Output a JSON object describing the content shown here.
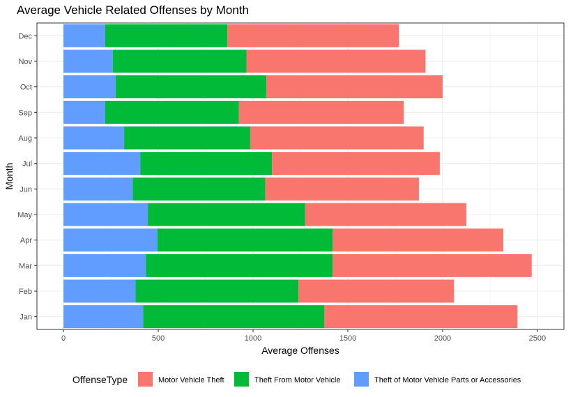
{
  "chart_data": {
    "type": "bar",
    "orientation": "horizontal",
    "stacked": true,
    "title": "Average Vehicle Related Offenses by Month",
    "xlabel": "Average Offenses",
    "ylabel": "Month",
    "categories": [
      "Jan",
      "Feb",
      "Mar",
      "Apr",
      "May",
      "Jun",
      "Jul",
      "Aug",
      "Sep",
      "Oct",
      "Nov",
      "Dec"
    ],
    "xlim": [
      -140,
      2640
    ],
    "xticks": [
      0,
      500,
      1000,
      1500,
      2000,
      2500
    ],
    "grid": true,
    "legend_title": "OffenseType",
    "legend_position": "bottom",
    "series": [
      {
        "name": "Theft of Motor Vehicle Parts or Accessories",
        "color": "#619CFF",
        "values": [
          420,
          380,
          435,
          495,
          445,
          365,
          405,
          320,
          220,
          275,
          260,
          220
        ]
      },
      {
        "name": "Theft From Motor Vehicle",
        "color": "#00BA38",
        "values": [
          955,
          860,
          985,
          925,
          830,
          700,
          695,
          665,
          705,
          795,
          705,
          645
        ]
      },
      {
        "name": "Motor Vehicle Theft",
        "color": "#F8766D",
        "values": [
          1020,
          820,
          1050,
          900,
          850,
          810,
          885,
          915,
          870,
          930,
          945,
          905
        ]
      }
    ],
    "legend_order": [
      "Motor Vehicle Theft",
      "Theft From Motor Vehicle",
      "Theft of Motor Vehicle Parts or Accessories"
    ]
  }
}
